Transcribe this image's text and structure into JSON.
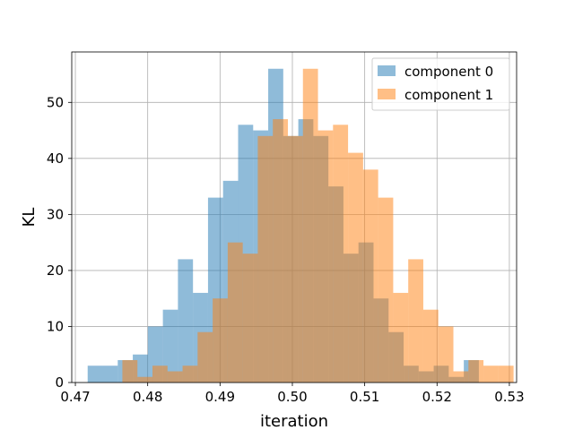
{
  "chart_data": {
    "type": "bar",
    "subtype": "overlapping-histogram",
    "xlabel": "iteration",
    "ylabel": "KL",
    "xlim": [
      0.4695,
      0.531
    ],
    "ylim": [
      0,
      59
    ],
    "x_ticks": [
      "0.47",
      "0.48",
      "0.49",
      "0.50",
      "0.51",
      "0.52",
      "0.53"
    ],
    "x_tick_values": [
      0.47,
      0.48,
      0.49,
      0.5,
      0.51,
      0.52,
      0.53
    ],
    "y_ticks": [
      "0",
      "10",
      "20",
      "30",
      "40",
      "50"
    ],
    "y_tick_values": [
      0,
      10,
      20,
      30,
      40,
      50
    ],
    "grid": true,
    "legend_position": "top-right",
    "series": [
      {
        "name": "component 0",
        "color": "#1f77b4",
        "alpha": 0.5,
        "bin_start": 0.4717,
        "bin_width": 0.00208,
        "values": [
          3,
          3,
          4,
          5,
          10,
          13,
          22,
          16,
          33,
          36,
          46,
          45,
          56,
          44,
          47,
          44,
          35,
          23,
          25,
          15,
          9,
          3,
          2,
          3,
          1,
          4
        ]
      },
      {
        "name": "component 1",
        "color": "#ff7f0e",
        "alpha": 0.5,
        "bin_start": 0.4765,
        "bin_width": 0.00208,
        "values": [
          4,
          1,
          3,
          2,
          3,
          9,
          15,
          25,
          23,
          44,
          47,
          44,
          56,
          45,
          46,
          41,
          38,
          33,
          16,
          22,
          13,
          10,
          2,
          4,
          3,
          3
        ]
      }
    ]
  }
}
